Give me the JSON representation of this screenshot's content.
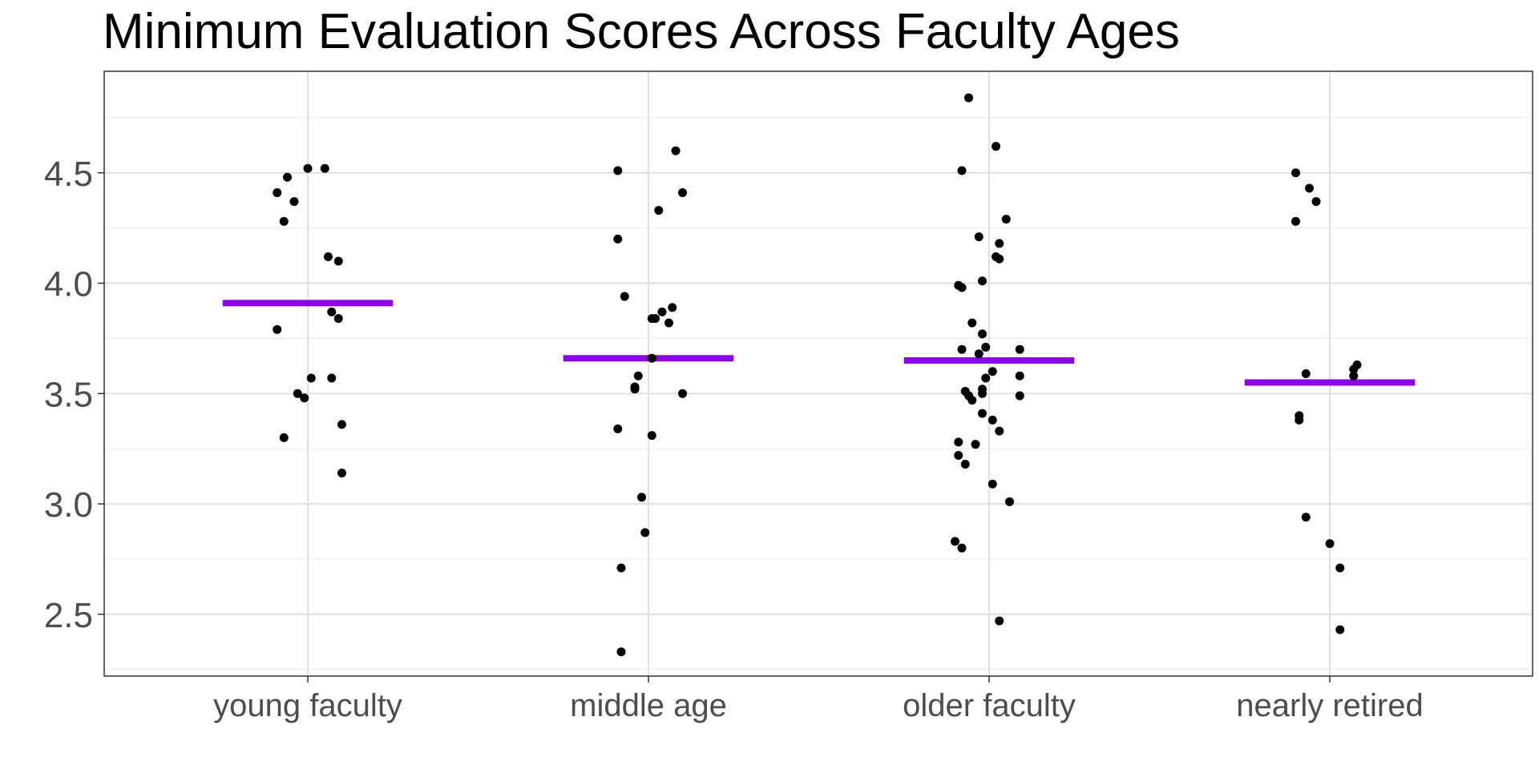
{
  "chart_data": {
    "type": "scatter",
    "title": "Minimum Evaluation Scores Across Faculty Ages",
    "xlabel": "",
    "ylabel": "",
    "categories": [
      "young faculty",
      "middle age",
      "older faculty",
      "nearly retired"
    ],
    "ylim": [
      2.22,
      4.96
    ],
    "y_ticks": [
      "2.5",
      "3.0",
      "3.5",
      "4.0",
      "4.5"
    ],
    "grid": true,
    "mean_line_color": "#8B00E8",
    "point_color": "#000000",
    "groups": [
      {
        "category": "young faculty",
        "mean": 3.91,
        "points": [
          {
            "jitter": -0.09,
            "y": 4.41
          },
          {
            "jitter": -0.06,
            "y": 4.48
          },
          {
            "jitter": -0.04,
            "y": 4.37
          },
          {
            "jitter": 0.0,
            "y": 4.52
          },
          {
            "jitter": 0.05,
            "y": 4.52
          },
          {
            "jitter": -0.07,
            "y": 4.28
          },
          {
            "jitter": 0.06,
            "y": 4.12
          },
          {
            "jitter": 0.09,
            "y": 4.1
          },
          {
            "jitter": 0.07,
            "y": 3.87
          },
          {
            "jitter": 0.09,
            "y": 3.84
          },
          {
            "jitter": -0.09,
            "y": 3.79
          },
          {
            "jitter": 0.01,
            "y": 3.57
          },
          {
            "jitter": 0.07,
            "y": 3.57
          },
          {
            "jitter": -0.03,
            "y": 3.5
          },
          {
            "jitter": -0.01,
            "y": 3.48
          },
          {
            "jitter": 0.1,
            "y": 3.36
          },
          {
            "jitter": -0.07,
            "y": 3.3
          },
          {
            "jitter": 0.1,
            "y": 3.14
          }
        ]
      },
      {
        "category": "middle age",
        "mean": 3.66,
        "points": [
          {
            "jitter": 0.08,
            "y": 4.6
          },
          {
            "jitter": -0.09,
            "y": 4.51
          },
          {
            "jitter": 0.1,
            "y": 4.41
          },
          {
            "jitter": 0.03,
            "y": 4.33
          },
          {
            "jitter": -0.09,
            "y": 4.2
          },
          {
            "jitter": -0.07,
            "y": 3.94
          },
          {
            "jitter": 0.07,
            "y": 3.89
          },
          {
            "jitter": 0.04,
            "y": 3.87
          },
          {
            "jitter": 0.01,
            "y": 3.84
          },
          {
            "jitter": 0.02,
            "y": 3.84
          },
          {
            "jitter": 0.06,
            "y": 3.82
          },
          {
            "jitter": 0.01,
            "y": 3.66
          },
          {
            "jitter": -0.03,
            "y": 3.58
          },
          {
            "jitter": -0.04,
            "y": 3.53
          },
          {
            "jitter": -0.04,
            "y": 3.52
          },
          {
            "jitter": 0.1,
            "y": 3.5
          },
          {
            "jitter": -0.09,
            "y": 3.34
          },
          {
            "jitter": 0.01,
            "y": 3.31
          },
          {
            "jitter": -0.02,
            "y": 3.03
          },
          {
            "jitter": -0.01,
            "y": 2.87
          },
          {
            "jitter": -0.08,
            "y": 2.71
          },
          {
            "jitter": -0.08,
            "y": 2.33
          }
        ]
      },
      {
        "category": "older faculty",
        "mean": 3.65,
        "points": [
          {
            "jitter": -0.06,
            "y": 4.84
          },
          {
            "jitter": 0.02,
            "y": 4.62
          },
          {
            "jitter": -0.08,
            "y": 4.51
          },
          {
            "jitter": 0.05,
            "y": 4.29
          },
          {
            "jitter": -0.03,
            "y": 4.21
          },
          {
            "jitter": 0.03,
            "y": 4.18
          },
          {
            "jitter": 0.02,
            "y": 4.12
          },
          {
            "jitter": 0.03,
            "y": 4.11
          },
          {
            "jitter": -0.02,
            "y": 4.01
          },
          {
            "jitter": -0.09,
            "y": 3.99
          },
          {
            "jitter": -0.08,
            "y": 3.98
          },
          {
            "jitter": -0.05,
            "y": 3.82
          },
          {
            "jitter": -0.02,
            "y": 3.77
          },
          {
            "jitter": -0.01,
            "y": 3.71
          },
          {
            "jitter": -0.08,
            "y": 3.7
          },
          {
            "jitter": 0.09,
            "y": 3.7
          },
          {
            "jitter": -0.03,
            "y": 3.68
          },
          {
            "jitter": 0.01,
            "y": 3.6
          },
          {
            "jitter": 0.09,
            "y": 3.58
          },
          {
            "jitter": -0.01,
            "y": 3.57
          },
          {
            "jitter": -0.07,
            "y": 3.51
          },
          {
            "jitter": -0.02,
            "y": 3.52
          },
          {
            "jitter": -0.02,
            "y": 3.5
          },
          {
            "jitter": -0.06,
            "y": 3.49
          },
          {
            "jitter": 0.09,
            "y": 3.49
          },
          {
            "jitter": -0.05,
            "y": 3.47
          },
          {
            "jitter": -0.02,
            "y": 3.41
          },
          {
            "jitter": 0.01,
            "y": 3.38
          },
          {
            "jitter": 0.03,
            "y": 3.33
          },
          {
            "jitter": -0.09,
            "y": 3.28
          },
          {
            "jitter": -0.04,
            "y": 3.27
          },
          {
            "jitter": -0.09,
            "y": 3.22
          },
          {
            "jitter": -0.07,
            "y": 3.18
          },
          {
            "jitter": 0.01,
            "y": 3.09
          },
          {
            "jitter": 0.06,
            "y": 3.01
          },
          {
            "jitter": -0.1,
            "y": 2.83
          },
          {
            "jitter": -0.08,
            "y": 2.8
          },
          {
            "jitter": 0.03,
            "y": 2.47
          }
        ]
      },
      {
        "category": "nearly retired",
        "mean": 3.55,
        "points": [
          {
            "jitter": -0.1,
            "y": 4.5
          },
          {
            "jitter": -0.06,
            "y": 4.43
          },
          {
            "jitter": -0.04,
            "y": 4.37
          },
          {
            "jitter": -0.1,
            "y": 4.28
          },
          {
            "jitter": 0.08,
            "y": 3.63
          },
          {
            "jitter": 0.07,
            "y": 3.61
          },
          {
            "jitter": -0.07,
            "y": 3.59
          },
          {
            "jitter": 0.07,
            "y": 3.58
          },
          {
            "jitter": -0.09,
            "y": 3.4
          },
          {
            "jitter": -0.09,
            "y": 3.38
          },
          {
            "jitter": -0.07,
            "y": 2.94
          },
          {
            "jitter": 0.0,
            "y": 2.82
          },
          {
            "jitter": 0.03,
            "y": 2.71
          },
          {
            "jitter": 0.03,
            "y": 2.43
          }
        ]
      }
    ]
  }
}
